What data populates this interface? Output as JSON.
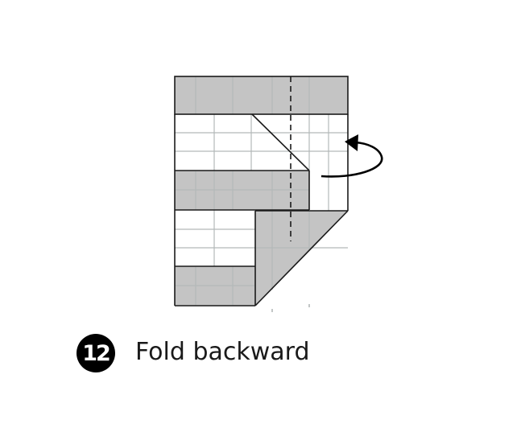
{
  "step": {
    "number": "12",
    "instruction": "Fold backward"
  },
  "colors": {
    "paper_front": "#ffffff",
    "paper_back": "#c4c4c4",
    "outline": "#000000",
    "grid": "#b3b9b9",
    "badge": "#000000",
    "badge_text": "#ffffff"
  },
  "icons": {
    "fold_arrow": "curved-arrow-backward-icon",
    "fold_line": "valley-fold-dashed-line"
  }
}
